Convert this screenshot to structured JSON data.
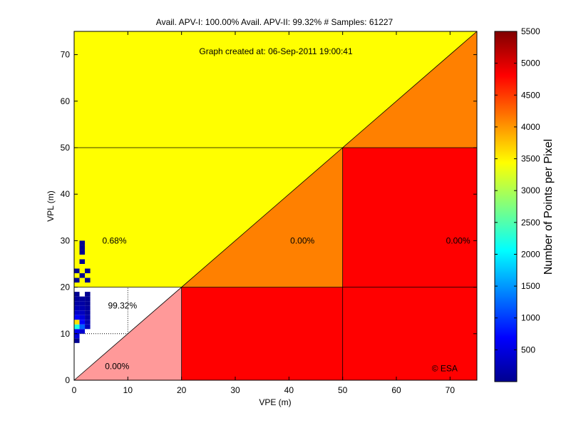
{
  "chart_data": {
    "type": "heatmap",
    "title": "Avail. APV-I: 100.00%  Avail. APV-II: 99.32%  # Samples: 61227",
    "subtitle": "Graph created at: 06-Sep-2011 19:00:41",
    "xlabel": "VPE (m)",
    "ylabel": "VPL (m)",
    "xlim": [
      0,
      75
    ],
    "ylim": [
      0,
      75
    ],
    "xticks": [
      0,
      10,
      20,
      30,
      40,
      50,
      60,
      70
    ],
    "yticks": [
      0,
      10,
      20,
      30,
      40,
      50,
      60,
      70
    ],
    "grid": false,
    "regions": [
      {
        "name": "upper-left",
        "polygon": [
          [
            0,
            20
          ],
          [
            0,
            75
          ],
          [
            75,
            75
          ],
          [
            20,
            20
          ]
        ],
        "color": "#ffff00"
      },
      {
        "name": "nominal",
        "polygon": [
          [
            0,
            0
          ],
          [
            0,
            20
          ],
          [
            20,
            20
          ]
        ],
        "color": "#ffffff"
      },
      {
        "name": "misleading",
        "polygon": [
          [
            0,
            0
          ],
          [
            20,
            20
          ],
          [
            20,
            0
          ]
        ],
        "color": "#ff9999"
      },
      {
        "name": "unavailable-misleading",
        "polygon": [
          [
            20,
            20
          ],
          [
            50,
            50
          ],
          [
            50,
            20
          ]
        ],
        "color": "#ff8000"
      },
      {
        "name": "unavailable-misleading-upper",
        "polygon": [
          [
            50,
            50
          ],
          [
            75,
            75
          ],
          [
            75,
            50
          ]
        ],
        "color": "#ff8000"
      },
      {
        "name": "hazardous-lower-mid",
        "polygon": [
          [
            20,
            0
          ],
          [
            50,
            0
          ],
          [
            50,
            20
          ],
          [
            20,
            20
          ]
        ],
        "color": "#ff0000"
      },
      {
        "name": "hazardous-lower-right",
        "polygon": [
          [
            50,
            0
          ],
          [
            75,
            0
          ],
          [
            75,
            20
          ],
          [
            50,
            20
          ]
        ],
        "color": "#ff0000"
      },
      {
        "name": "hazardous-right",
        "polygon": [
          [
            50,
            20
          ],
          [
            75,
            20
          ],
          [
            75,
            50
          ],
          [
            50,
            50
          ]
        ],
        "color": "#ff0000"
      }
    ],
    "lines": [
      {
        "from": [
          0,
          0
        ],
        "to": [
          75,
          75
        ]
      },
      {
        "from": [
          0,
          20
        ],
        "to": [
          75,
          20
        ]
      },
      {
        "from": [
          0,
          50
        ],
        "to": [
          75,
          50
        ]
      },
      {
        "from": [
          20,
          0
        ],
        "to": [
          20,
          20
        ]
      },
      {
        "from": [
          50,
          0
        ],
        "to": [
          50,
          50
        ]
      }
    ],
    "dotted_lines": [
      {
        "from": [
          0,
          10
        ],
        "to": [
          10,
          10
        ]
      },
      {
        "from": [
          10,
          10
        ],
        "to": [
          10,
          20
        ]
      }
    ],
    "annotations": [
      {
        "text": "0.68%",
        "x": 7.5,
        "y": 30
      },
      {
        "text": "0.00%",
        "x": 42.5,
        "y": 30
      },
      {
        "text": "0.00%",
        "x": 71.5,
        "y": 30
      },
      {
        "text": "99.32%",
        "x": 9,
        "y": 16
      },
      {
        "text": "0.00%",
        "x": 8,
        "y": 3
      },
      {
        "text": "© ESA",
        "x": 69,
        "y": 2.5
      }
    ],
    "points": [
      {
        "x": 0.5,
        "y": 9.5,
        "v": 500
      },
      {
        "x": 0.5,
        "y": 10.5,
        "v": 600
      },
      {
        "x": 0.5,
        "y": 11.5,
        "v": 2200
      },
      {
        "x": 0.5,
        "y": 12.5,
        "v": 3600
      },
      {
        "x": 0.5,
        "y": 13.5,
        "v": 700
      },
      {
        "x": 0.5,
        "y": 14.5,
        "v": 400
      },
      {
        "x": 0.5,
        "y": 15.5,
        "v": 300
      },
      {
        "x": 0.5,
        "y": 16.5,
        "v": 200
      },
      {
        "x": 0.5,
        "y": 17.5,
        "v": 150
      },
      {
        "x": 0.5,
        "y": 18.5,
        "v": 100
      },
      {
        "x": 0.5,
        "y": 8.5,
        "v": 100
      },
      {
        "x": 1.5,
        "y": 10.5,
        "v": 450
      },
      {
        "x": 1.5,
        "y": 11.5,
        "v": 1200
      },
      {
        "x": 1.5,
        "y": 12.5,
        "v": 700
      },
      {
        "x": 1.5,
        "y": 13.5,
        "v": 500
      },
      {
        "x": 1.5,
        "y": 14.5,
        "v": 350
      },
      {
        "x": 1.5,
        "y": 15.5,
        "v": 250
      },
      {
        "x": 1.5,
        "y": 16.5,
        "v": 200
      },
      {
        "x": 1.5,
        "y": 17.5,
        "v": 150
      },
      {
        "x": 2.5,
        "y": 11.5,
        "v": 300
      },
      {
        "x": 2.5,
        "y": 12.5,
        "v": 250
      },
      {
        "x": 2.5,
        "y": 13.5,
        "v": 200
      },
      {
        "x": 2.5,
        "y": 14.5,
        "v": 150
      },
      {
        "x": 2.5,
        "y": 15.5,
        "v": 150
      },
      {
        "x": 2.5,
        "y": 16.5,
        "v": 100
      },
      {
        "x": 2.5,
        "y": 17.5,
        "v": 100
      },
      {
        "x": 2.5,
        "y": 18.5,
        "v": 100
      },
      {
        "x": 0.5,
        "y": 21.5,
        "v": 100
      },
      {
        "x": 0.5,
        "y": 23.5,
        "v": 100
      },
      {
        "x": 1.5,
        "y": 22.5,
        "v": 100
      },
      {
        "x": 2.5,
        "y": 21.5,
        "v": 100
      },
      {
        "x": 2.5,
        "y": 23.5,
        "v": 100
      },
      {
        "x": 1.5,
        "y": 25.5,
        "v": 100
      },
      {
        "x": 1.5,
        "y": 27.5,
        "v": 100
      },
      {
        "x": 1.5,
        "y": 28.5,
        "v": 100
      },
      {
        "x": 1.5,
        "y": 29.5,
        "v": 100
      }
    ],
    "colorbar": {
      "label": "Number of Points per Pixel",
      "range": [
        0,
        5500
      ],
      "ticks": [
        500,
        1000,
        1500,
        2000,
        2500,
        3000,
        3500,
        4000,
        4500,
        5000,
        5500
      ],
      "colormap": "jet"
    }
  }
}
